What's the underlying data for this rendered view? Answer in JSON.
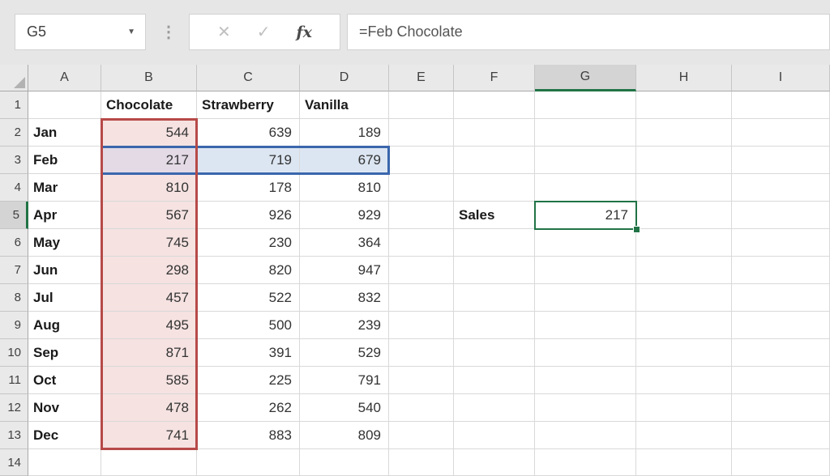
{
  "chrome": {
    "name_box_value": "G5",
    "dropdown_icon": "▼",
    "dots_icon": "⋮",
    "cancel_icon": "✕",
    "enter_icon": "✓",
    "fx_icon": "fx",
    "formula_value": "=Feb Chocolate"
  },
  "grid": {
    "columns": [
      "A",
      "B",
      "C",
      "D",
      "E",
      "F",
      "G",
      "H",
      "I"
    ],
    "row_count": 14,
    "header_row": {
      "B": "Chocolate",
      "C": "Strawberry",
      "D": "Vanilla"
    },
    "months": [
      "Jan",
      "Feb",
      "Mar",
      "Apr",
      "May",
      "Jun",
      "Jul",
      "Aug",
      "Sep",
      "Oct",
      "Nov",
      "Dec"
    ],
    "series": {
      "Chocolate": [
        544,
        217,
        810,
        567,
        745,
        298,
        457,
        495,
        871,
        585,
        478,
        741
      ],
      "Strawberry": [
        639,
        719,
        178,
        926,
        230,
        820,
        522,
        500,
        391,
        225,
        262,
        883
      ],
      "Vanilla": [
        189,
        679,
        810,
        929,
        364,
        947,
        832,
        239,
        529,
        791,
        540,
        809
      ]
    },
    "data_row_start": 2,
    "data_row_end": 13,
    "sales": {
      "row": 5,
      "label_col": "F",
      "label": "Sales",
      "value_col": "G",
      "value": "217"
    },
    "selected_cell": {
      "col": "G",
      "row": 5
    },
    "red_range": {
      "col": "B",
      "row_start": 2,
      "row_end": 13
    },
    "blue_range": {
      "row": 3,
      "cols": [
        "B",
        "C",
        "D"
      ]
    }
  },
  "colors": {
    "accent_green": "#217346",
    "red_border": "#b64a48",
    "pink_fill": "#f5e2e1",
    "blend_fill": "#e3dae6",
    "blue_border": "#3a66ac",
    "blue_fill": "#dce6f2"
  }
}
